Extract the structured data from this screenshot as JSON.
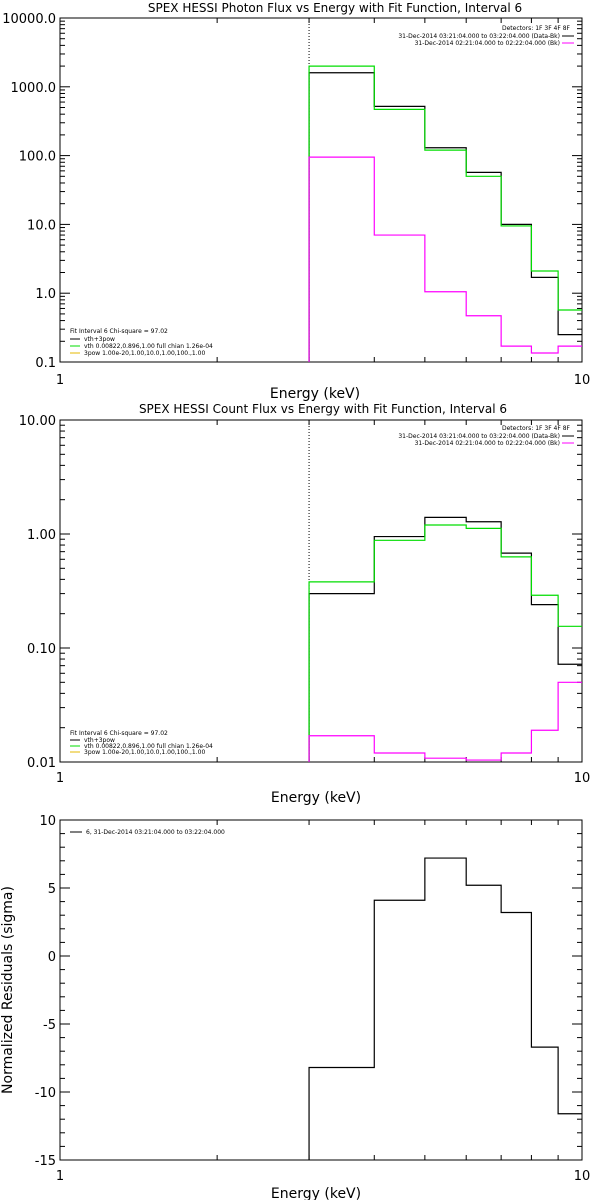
{
  "colors": {
    "data": "#000000",
    "fit_total": "#00dd00",
    "background": "#ff00ff",
    "spex": "#e6b800"
  },
  "chart_data": [
    {
      "type": "line",
      "title": "SPEX HESSI Photon Flux vs Energy with Fit Function, Interval 6",
      "xlabel": "Energy (keV)",
      "ylabel": "",
      "xscale": "log",
      "yscale": "log",
      "xlim": [
        1,
        10
      ],
      "ylim": [
        0.1,
        10000
      ],
      "xtick_labels": [
        "1",
        "10"
      ],
      "ytick_labels": [
        "0.1",
        "1.0",
        "10.0",
        "100.0",
        "1000.0",
        "10000.0"
      ],
      "ytick_values": [
        0.1,
        1,
        10,
        100,
        1000,
        10000
      ],
      "edges": [
        3,
        4,
        5,
        6,
        7,
        8,
        9,
        10
      ],
      "dotted_line_x": 3,
      "legend_top": [
        "Detectors: 1F 3F 4F 8F",
        "31-Dec-2014 03:21:04.000 to 03:22:04.000 (Data-Bk)",
        "31-Dec-2014 02:21:04.000 to 02:22:04.000 (Bk)"
      ],
      "legend_top_colors": [
        "#000000",
        "#000000",
        "#ff00ff"
      ],
      "legend_bottom": [
        "Fit Interval 6   Chi-square = 97.02",
        "vth+3pow",
        "vth 0.00822,0.896,1.00  full chian 1.26e-04",
        "3pow 1.00e-20,1.00,10.0,1.00,100.,1.00"
      ],
      "legend_bottom_colors": [
        "",
        "#000000",
        "#00dd00",
        "#e6b800"
      ],
      "series": [
        {
          "name": "31-Dec-2014 03:21:04.000 to 03:22:04.000 (Data-Bk)",
          "color": "#000000",
          "values": [
            1600,
            520,
            130,
            57,
            10,
            1.7,
            0.25
          ]
        },
        {
          "name": "vth+3pow",
          "color": "#00dd00",
          "values": [
            2000,
            470,
            120,
            50,
            9.5,
            2.1,
            0.57
          ]
        },
        {
          "name": "31-Dec-2014 02:21:04.000 to 02:22:04.000 (Bk)",
          "color": "#ff00ff",
          "values": [
            95,
            7,
            1.05,
            0.47,
            0.17,
            0.135,
            0.17
          ]
        }
      ]
    },
    {
      "type": "line",
      "title": "SPEX HESSI Count Flux vs Energy with Fit Function, Interval 6",
      "xlabel": "Energy (keV)",
      "ylabel": "",
      "xscale": "log",
      "yscale": "log",
      "xlim": [
        1,
        10
      ],
      "ylim": [
        0.01,
        10
      ],
      "xtick_labels": [
        "1",
        "10"
      ],
      "ytick_labels": [
        "0.01",
        "0.10",
        "1.00",
        "10.00"
      ],
      "ytick_values": [
        0.01,
        0.1,
        1,
        10
      ],
      "edges": [
        3,
        4,
        5,
        6,
        7,
        8,
        9,
        10
      ],
      "dotted_line_x": 3,
      "legend_top": [
        "Detectors: 1F 3F 4F 8F",
        "31-Dec-2014 03:21:04.000 to 03:22:04.000 (Data-Bk)",
        "31-Dec-2014 02:21:04.000 to 02:22:04.000 (Bk)"
      ],
      "legend_top_colors": [
        "#000000",
        "#000000",
        "#ff00ff"
      ],
      "legend_bottom": [
        "Fit Interval 6   Chi-square = 97.02",
        "vth+3pow",
        "vth 0.00822,0.896,1.00  full chian 1.26e-04",
        "3pow 1.00e-20,1.00,10.0,1.00,100.,1.00"
      ],
      "legend_bottom_colors": [
        "",
        "#000000",
        "#00dd00",
        "#e6b800"
      ],
      "series": [
        {
          "name": "31-Dec-2014 03:21:04.000 to 03:22:04.000 (Data-Bk)",
          "color": "#000000",
          "values": [
            0.3,
            0.95,
            1.4,
            1.28,
            0.68,
            0.24,
            0.072
          ]
        },
        {
          "name": "vth+3pow",
          "color": "#00dd00",
          "values": [
            0.38,
            0.88,
            1.2,
            1.12,
            0.63,
            0.29,
            0.155
          ]
        },
        {
          "name": "31-Dec-2014 02:21:04.000 to 02:22:04.000 (Bk)",
          "color": "#ff00ff",
          "values": [
            0.017,
            0.012,
            0.0108,
            0.0104,
            0.012,
            0.019,
            0.05
          ]
        }
      ]
    },
    {
      "type": "line",
      "title": "",
      "xlabel": "Energy (keV)",
      "ylabel": "Normalized Residuals (sigma)",
      "xscale": "log",
      "yscale": "linear",
      "xlim": [
        1,
        10
      ],
      "ylim": [
        -15,
        10
      ],
      "xtick_labels": [
        "1",
        "10"
      ],
      "ytick_labels": [
        "-15",
        "-10",
        "-5",
        "0",
        "5",
        "10"
      ],
      "ytick_values": [
        -15,
        -10,
        -5,
        0,
        5,
        10
      ],
      "edges": [
        3,
        4,
        5,
        6,
        7,
        8,
        9,
        10
      ],
      "legend_top": [
        "6, 31-Dec-2014 03:21:04.000 to 03:22:04.000"
      ],
      "series": [
        {
          "name": "6, 31-Dec-2014 03:21:04.000 to 03:22:04.000",
          "color": "#000000",
          "values": [
            -8.2,
            4.1,
            7.2,
            5.2,
            3.2,
            -6.7,
            -11.6
          ]
        }
      ]
    }
  ]
}
